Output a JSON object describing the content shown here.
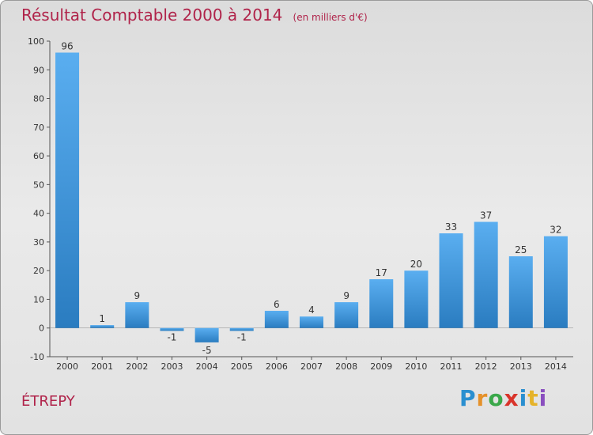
{
  "header": {
    "title": "Résultat Comptable 2000 à 2014",
    "unit": "(en milliers d'€)"
  },
  "commune": "ÉTREPY",
  "logo": {
    "text": "Proxiti"
  },
  "colors": {
    "bar_top": "#5aaef0",
    "bar_bottom": "#2a7cc0",
    "title": "#b0234a"
  },
  "chart_data": {
    "type": "bar",
    "title": "Résultat Comptable 2000 à 2014",
    "categories": [
      "2000",
      "2001",
      "2002",
      "2003",
      "2004",
      "2005",
      "2006",
      "2007",
      "2008",
      "2009",
      "2010",
      "2011",
      "2012",
      "2013",
      "2014"
    ],
    "values": [
      96,
      1,
      9,
      -1,
      -5,
      -1,
      6,
      4,
      9,
      17,
      20,
      33,
      37,
      25,
      32
    ],
    "ylim": [
      -10,
      100
    ],
    "yticks": [
      -10,
      0,
      10,
      20,
      30,
      40,
      50,
      60,
      70,
      80,
      90,
      100
    ],
    "grid": false,
    "xlabel": "",
    "ylabel": ""
  }
}
